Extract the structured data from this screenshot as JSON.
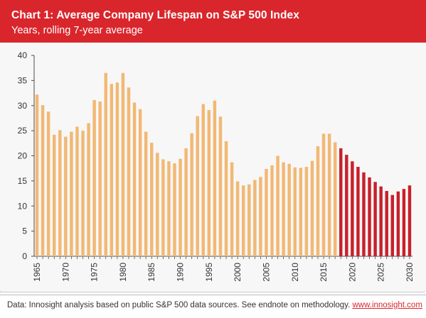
{
  "header": {
    "title": "Chart 1: Average Company Lifespan on S&P 500 Index",
    "subtitle": "Years, rolling 7-year average"
  },
  "footer": {
    "note": "Data: Innosight analysis based on public S&P 500 data sources. See endnote on methodology. ",
    "link": "www.innosight.com"
  },
  "colors": {
    "header_bg": "#d9262c",
    "historical_bar": "#f2b873",
    "forecast_bar": "#c8202a",
    "axis": "#4d4d4d"
  },
  "chart_data": {
    "type": "bar",
    "title": "Chart 1: Average Company Lifespan on S&P 500 Index",
    "subtitle": "Years, rolling 7-year average",
    "xlabel": "",
    "ylabel": "",
    "ylim": [
      0,
      40
    ],
    "yticks": [
      0,
      5,
      10,
      15,
      20,
      25,
      30,
      35,
      40
    ],
    "xticks": [
      1965,
      1970,
      1975,
      1980,
      1985,
      1990,
      1995,
      2000,
      2005,
      2010,
      2015,
      2020,
      2025,
      2030
    ],
    "grid": false,
    "x": [
      1965,
      1966,
      1967,
      1968,
      1969,
      1970,
      1971,
      1972,
      1973,
      1974,
      1975,
      1976,
      1977,
      1978,
      1979,
      1980,
      1981,
      1982,
      1983,
      1984,
      1985,
      1986,
      1987,
      1988,
      1989,
      1990,
      1991,
      1992,
      1993,
      1994,
      1995,
      1996,
      1997,
      1998,
      1999,
      2000,
      2001,
      2002,
      2003,
      2004,
      2005,
      2006,
      2007,
      2008,
      2009,
      2010,
      2011,
      2012,
      2013,
      2014,
      2015,
      2016,
      2017,
      2018,
      2019,
      2020,
      2021,
      2022,
      2023,
      2024,
      2025,
      2026,
      2027,
      2028,
      2029,
      2030
    ],
    "series": [
      {
        "color": "#f2b873",
        "values": [
          32.2,
          30.1,
          28.8,
          24.2,
          25.1,
          23.8,
          24.8,
          25.8,
          25.0,
          26.5,
          31.1,
          30.8,
          36.5,
          34.3,
          34.6,
          36.5,
          33.6,
          30.6,
          29.3,
          24.8,
          22.6,
          20.6,
          19.3,
          18.9,
          18.5,
          19.4,
          21.5,
          24.5,
          27.9,
          30.3,
          29.1,
          31.0,
          27.8,
          22.9,
          18.7,
          14.9,
          14.1,
          14.3,
          15.2,
          15.8,
          17.4,
          18.1,
          20.0,
          18.7,
          18.4,
          17.7,
          17.6,
          17.8,
          19.0,
          21.9,
          24.4,
          24.4,
          22.7,
          null,
          null,
          null,
          null,
          null,
          null,
          null,
          null,
          null,
          null,
          null,
          null,
          null
        ]
      },
      {
        "color": "#c8202a",
        "values": [
          null,
          null,
          null,
          null,
          null,
          null,
          null,
          null,
          null,
          null,
          null,
          null,
          null,
          null,
          null,
          null,
          null,
          null,
          null,
          null,
          null,
          null,
          null,
          null,
          null,
          null,
          null,
          null,
          null,
          null,
          null,
          null,
          null,
          null,
          null,
          null,
          null,
          null,
          null,
          null,
          null,
          null,
          null,
          null,
          null,
          null,
          null,
          null,
          null,
          null,
          null,
          null,
          null,
          21.5,
          20.2,
          18.9,
          17.8,
          16.7,
          15.7,
          14.8,
          13.9,
          13.0,
          12.2,
          12.9,
          13.4,
          14.1
        ]
      }
    ]
  }
}
